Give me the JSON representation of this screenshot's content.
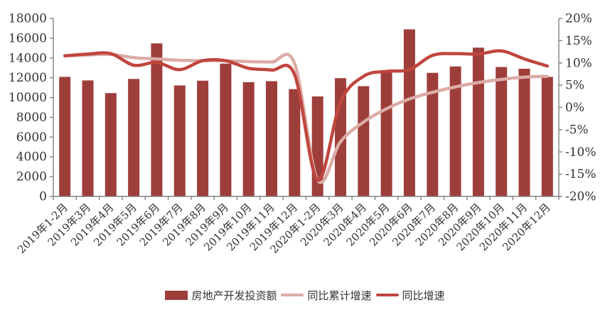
{
  "chart_data": {
    "type": "bar",
    "title": "",
    "categories": [
      "2019年1-2月",
      "2019年3月",
      "2019年4月",
      "2019年5月",
      "2019年6月",
      "2019年7月",
      "2019年8月",
      "2019年9月",
      "2019年10月",
      "2019年11月",
      "2019年12月",
      "2020年1-2月",
      "2020年3月",
      "2020年4月",
      "2020年5月",
      "2020年6月",
      "2020年7月",
      "2020年8月",
      "2020年9月",
      "2020年10月",
      "2020年11月",
      "2020年12月"
    ],
    "bar_series": {
      "name": "房地产开发投资额",
      "axis": "left",
      "values": [
        12090,
        11731,
        10448,
        11886,
        15477,
        11221,
        11706,
        13434,
        11556,
        11651,
        10852,
        10115,
        11962,
        11154,
        12771,
        16894,
        12503,
        13147,
        15046,
        13090,
        12919,
        12092
      ]
    },
    "line_series": [
      {
        "name": "同比累计增速",
        "axis": "right",
        "values": [
          11.6,
          11.8,
          11.9,
          11.2,
          10.9,
          10.6,
          10.5,
          10.5,
          10.3,
          10.2,
          9.9,
          -16.3,
          -7.7,
          -3.3,
          -0.3,
          1.9,
          3.4,
          4.6,
          5.6,
          6.3,
          6.8,
          7.0
        ]
      },
      {
        "name": "同比增速",
        "axis": "right",
        "values": [
          11.6,
          12.0,
          12.1,
          9.5,
          10.1,
          8.5,
          10.5,
          10.5,
          8.8,
          8.4,
          7.4,
          -16.3,
          1.2,
          7.0,
          8.1,
          8.5,
          11.7,
          12.1,
          12.0,
          12.7,
          10.9,
          9.3
        ]
      }
    ],
    "left_axis": {
      "min": 0,
      "max": 18000,
      "step": 2000,
      "tick_labels": [
        "0",
        "2000",
        "4000",
        "6000",
        "8000",
        "10000",
        "12000",
        "14000",
        "16000",
        "18000"
      ]
    },
    "right_axis": {
      "min": -20,
      "max": 20,
      "step": 5,
      "tick_labels": [
        "-20%",
        "-15%",
        "-10%",
        "-5%",
        "0%",
        "5%",
        "10%",
        "15%",
        "20%"
      ]
    },
    "legend_position": "bottom",
    "grid": false,
    "xlabel": "",
    "ylabel": ""
  },
  "legend": {
    "items": [
      {
        "label": "房地产开发投资额",
        "type": "bar"
      },
      {
        "label": "同比累计增速",
        "type": "line"
      },
      {
        "label": "同比增速",
        "type": "line"
      }
    ]
  },
  "colors": {
    "bar": "#9e3e3b",
    "cumulative_line": "#dcaba6",
    "yoy_line": "#c0463e",
    "axis": "#808080",
    "text": "#333333"
  }
}
